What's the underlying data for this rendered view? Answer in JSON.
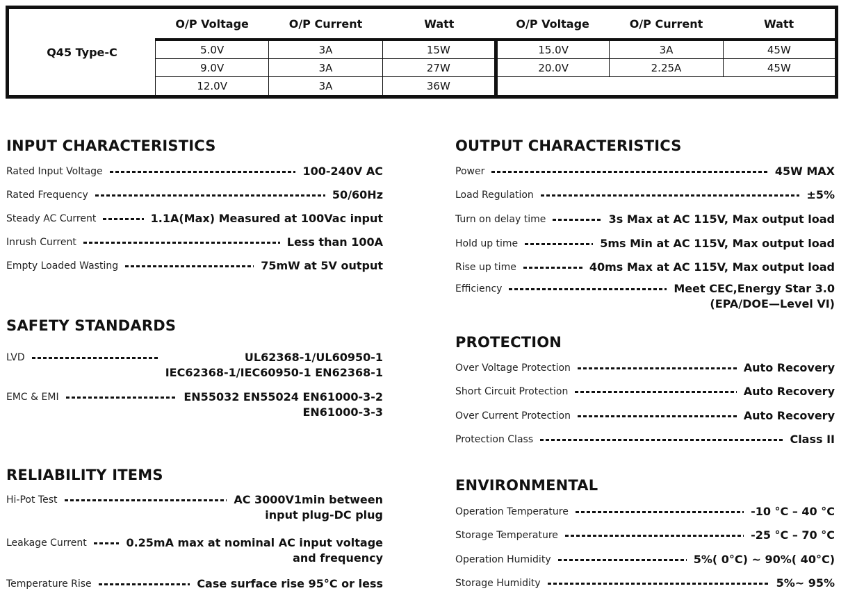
{
  "table": {
    "model": "Q45 Type-C",
    "headers": [
      "O/P Voltage",
      "O/P Current",
      "Watt",
      "O/P Voltage",
      "O/P Current",
      "Watt"
    ],
    "rows": [
      [
        "5.0V",
        "3A",
        "15W",
        "15.0V",
        "3A",
        "45W"
      ],
      [
        "9.0V",
        "3A",
        "27W",
        "20.0V",
        "2.25A",
        "45W"
      ],
      [
        "12.0V",
        "3A",
        "36W",
        "",
        "",
        ""
      ]
    ]
  },
  "sections": [
    {
      "title": "INPUT CHARACTERISTICS",
      "items": [
        {
          "label": "Rated Input Voltage",
          "value": [
            "100-240V AC"
          ]
        },
        {
          "label": "Rated Frequency",
          "value": [
            "50/60Hz"
          ]
        },
        {
          "label": "Steady AC Current",
          "value": [
            "1.1A(Max) Measured at 100Vac input"
          ]
        },
        {
          "label": "Inrush Current",
          "value": [
            "Less than 100A"
          ]
        },
        {
          "label": "Empty Loaded Wasting",
          "value": [
            "75mW at 5V output"
          ]
        }
      ]
    },
    {
      "title": "SAFETY STANDARDS",
      "items": [
        {
          "label": "LVD",
          "value": [
            "UL62368-1/UL60950-1",
            "IEC62368-1/IEC60950-1 EN62368-1"
          ]
        },
        {
          "label": "EMC & EMI",
          "value": [
            "EN55032 EN55024 EN61000-3-2",
            "EN61000-3-3"
          ]
        }
      ]
    },
    {
      "title": "RELIABILITY ITEMS",
      "items": [
        {
          "label": "Hi-Pot Test",
          "value": [
            "AC 3000V1min between",
            "input plug-DC plug"
          ]
        },
        {
          "label": "Leakage Current",
          "value": [
            "0.25mA max at nominal AC input voltage",
            "and frequency"
          ]
        },
        {
          "label": "Temperature Rise",
          "value": [
            "Case surface rise 95°C or less"
          ]
        }
      ]
    },
    {
      "title": "OUTPUT CHARACTERISTICS",
      "items": [
        {
          "label": "Power",
          "value": [
            "45W MAX"
          ]
        },
        {
          "label": "Load Regulation",
          "value": [
            "±5%"
          ]
        },
        {
          "label": "Turn on delay time",
          "value": [
            "3s Max at AC 115V, Max output load"
          ]
        },
        {
          "label": "Hold up time",
          "value": [
            "5ms Min at AC 115V, Max output load"
          ]
        },
        {
          "label": "Rise up time",
          "value": [
            "40ms Max at AC 115V, Max output load"
          ]
        },
        {
          "label": "Efficiency",
          "value": [
            "Meet CEC,Energy Star 3.0",
            "(EPA/DOE—Level VI)"
          ]
        }
      ]
    },
    {
      "title": "PROTECTION",
      "items": [
        {
          "label": "Over Voltage Protection",
          "value": [
            "Auto Recovery"
          ]
        },
        {
          "label": "Short Circuit Protection",
          "value": [
            "Auto Recovery"
          ]
        },
        {
          "label": "Over Current Protection",
          "value": [
            "Auto Recovery"
          ]
        },
        {
          "label": "Protection Class",
          "value": [
            "Class II"
          ]
        }
      ]
    },
    {
      "title": "ENVIRONMENTAL",
      "items": [
        {
          "label": "Operation Temperature",
          "value": [
            "-10 °C – 40 °C"
          ]
        },
        {
          "label": "Storage Temperature",
          "value": [
            "-25 °C – 70 °C"
          ]
        },
        {
          "label": "Operation Humidity",
          "value": [
            "5%( 0°C) ~ 90%( 40°C)"
          ]
        },
        {
          "label": "Storage Humidity",
          "value": [
            "5%~ 95%"
          ]
        }
      ]
    }
  ]
}
